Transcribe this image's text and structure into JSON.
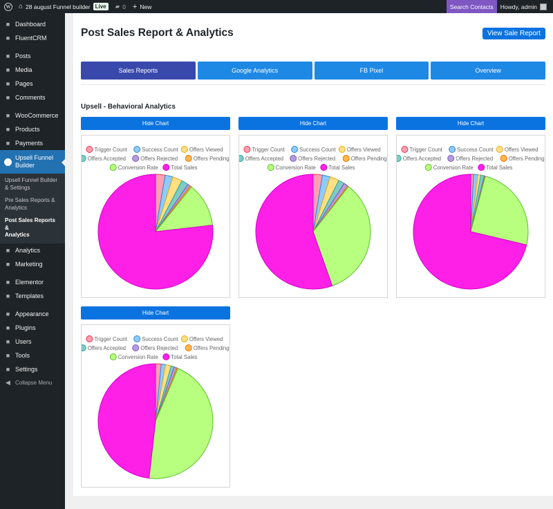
{
  "admin_bar": {
    "site_name": "28 august Funnel builder",
    "live_badge": "Live",
    "comments_count": "0",
    "new_label": "New",
    "search_contacts": "Search Contacts",
    "howdy": "Howdy, admin"
  },
  "sidebar": {
    "items_top": [
      {
        "label": "Dashboard",
        "icon": "dashboard-icon"
      },
      {
        "label": "FluentCRM",
        "icon": "fluentcrm-icon"
      }
    ],
    "items_content": [
      {
        "label": "Posts",
        "icon": "pin-icon"
      },
      {
        "label": "Media",
        "icon": "media-icon"
      },
      {
        "label": "Pages",
        "icon": "page-icon"
      },
      {
        "label": "Comments",
        "icon": "comment-icon"
      }
    ],
    "items_commerce": [
      {
        "label": "WooCommerce",
        "icon": "woo-icon"
      },
      {
        "label": "Products",
        "icon": "products-icon"
      },
      {
        "label": "Payments",
        "icon": "payments-icon"
      }
    ],
    "active": {
      "label_line1": "Upsell Funnel",
      "label_line2": "Builder"
    },
    "submenu": [
      {
        "line1": "Upsell Funnel Builder",
        "line2": "& Settings"
      },
      {
        "line1": "Pre Sales Reports &",
        "line2": "Analytics"
      },
      {
        "line1": "Post Sales Reports &",
        "line2": "Analytics"
      }
    ],
    "items_analytics": [
      {
        "label": "Analytics",
        "icon": "analytics-icon"
      },
      {
        "label": "Marketing",
        "icon": "marketing-icon"
      }
    ],
    "items_builder": [
      {
        "label": "Elementor",
        "icon": "elementor-icon"
      },
      {
        "label": "Templates",
        "icon": "templates-icon"
      }
    ],
    "items_settings": [
      {
        "label": "Appearance",
        "icon": "appearance-icon"
      },
      {
        "label": "Plugins",
        "icon": "plugins-icon"
      },
      {
        "label": "Users",
        "icon": "users-icon"
      },
      {
        "label": "Tools",
        "icon": "tools-icon"
      },
      {
        "label": "Settings",
        "icon": "settings-icon"
      }
    ],
    "collapse": "Collapse Menu"
  },
  "page": {
    "title": "Post Sales Report & Analytics",
    "view_button": "View Sale Report",
    "tabs": [
      "Sales Reports",
      "Google Analytics",
      "FB Pixel",
      "Overview"
    ],
    "active_tab": "Sales Reports",
    "section_title": "Upsell - Behavioral Analytics",
    "hide_chart_label": "Hide Chart"
  },
  "chart_data": [
    {
      "type": "pie",
      "categories": [
        "Trigger Count",
        "Success Count",
        "Offers Viewed",
        "Offers Accepted",
        "Offers Rejected",
        "Offers Pending",
        "Conversion Rate",
        "Total Sales"
      ],
      "values": [
        2.7,
        2.2,
        2.7,
        2.0,
        0.8,
        0.4,
        12.4,
        76.8
      ],
      "colors": [
        "#ff9fb3",
        "#90caf9",
        "#ffe082",
        "#80cbc4",
        "#b39ddb",
        "#ffb74d",
        "#b9ff7f",
        "#ff20e8"
      ],
      "border_colors": [
        "#e53950",
        "#2a8ad4",
        "#e6a817",
        "#26a69a",
        "#7e57c2",
        "#ef6c00",
        "#56c22b",
        "#d400c8"
      ]
    },
    {
      "type": "pie",
      "categories": [
        "Trigger Count",
        "Success Count",
        "Offers Viewed",
        "Offers Accepted",
        "Offers Rejected",
        "Offers Pending",
        "Conversion Rate",
        "Total Sales"
      ],
      "values": [
        2.6,
        2.2,
        2.6,
        1.7,
        1.2,
        0.3,
        34.0,
        55.4
      ],
      "colors": [
        "#ff9fb3",
        "#90caf9",
        "#ffe082",
        "#80cbc4",
        "#b39ddb",
        "#ffb74d",
        "#b9ff7f",
        "#ff20e8"
      ],
      "border_colors": [
        "#e53950",
        "#2a8ad4",
        "#e6a817",
        "#26a69a",
        "#7e57c2",
        "#ef6c00",
        "#56c22b",
        "#d400c8"
      ]
    },
    {
      "type": "pie",
      "categories": [
        "Trigger Count",
        "Success Count",
        "Offers Viewed",
        "Offers Accepted",
        "Offers Rejected",
        "Offers Pending",
        "Conversion Rate",
        "Total Sales"
      ],
      "values": [
        0.8,
        1.2,
        0.8,
        1.0,
        0.2,
        0.1,
        24.6,
        71.3
      ],
      "colors": [
        "#ff9fb3",
        "#90caf9",
        "#ffe082",
        "#80cbc4",
        "#b39ddb",
        "#ffb74d",
        "#b9ff7f",
        "#ff20e8"
      ],
      "border_colors": [
        "#e53950",
        "#2a8ad4",
        "#e6a817",
        "#26a69a",
        "#7e57c2",
        "#ef6c00",
        "#56c22b",
        "#d400c8"
      ]
    },
    {
      "type": "pie",
      "categories": [
        "Trigger Count",
        "Success Count",
        "Offers Viewed",
        "Offers Accepted",
        "Offers Rejected",
        "Offers Pending",
        "Conversion Rate",
        "Total Sales"
      ],
      "values": [
        1.6,
        1.2,
        1.6,
        0.9,
        0.8,
        0.3,
        45.4,
        48.2
      ],
      "colors": [
        "#ff9fb3",
        "#90caf9",
        "#ffe082",
        "#80cbc4",
        "#b39ddb",
        "#ffb74d",
        "#b9ff7f",
        "#ff20e8"
      ],
      "border_colors": [
        "#e53950",
        "#2a8ad4",
        "#e6a817",
        "#26a69a",
        "#7e57c2",
        "#ef6c00",
        "#56c22b",
        "#d400c8"
      ]
    }
  ]
}
